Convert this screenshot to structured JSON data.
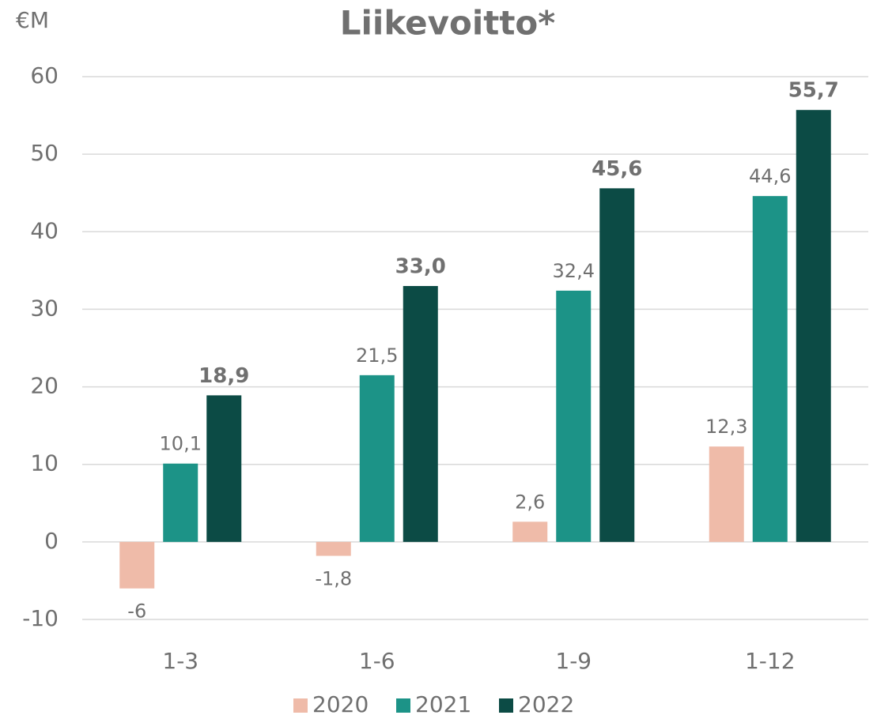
{
  "chart_data": {
    "type": "bar",
    "title": "Liikevoitto*",
    "ylabel": "€M",
    "categories": [
      "1-3",
      "1-6",
      "1-9",
      "1-12"
    ],
    "series": [
      {
        "name": "2020",
        "color": "#efbba9",
        "values": [
          -6,
          -1.8,
          2.6,
          12.3
        ],
        "value_labels": [
          "-6",
          "-1,8",
          "2,6",
          "12,3"
        ]
      },
      {
        "name": "2021",
        "color": "#1c9387",
        "values": [
          10.1,
          21.5,
          32.4,
          44.6
        ],
        "value_labels": [
          "10,1",
          "21,5",
          "32,4",
          "44,6"
        ]
      },
      {
        "name": "2022",
        "color": "#0c4b45",
        "values": [
          18.9,
          33.0,
          45.6,
          55.7
        ],
        "value_labels": [
          "18,9",
          "33,0",
          "45,6",
          "55,7"
        ]
      }
    ],
    "ylim": [
      -10,
      60
    ],
    "yticks": [
      -10,
      0,
      10,
      20,
      30,
      40,
      50,
      60
    ],
    "grid": true,
    "legend": "bottom"
  }
}
